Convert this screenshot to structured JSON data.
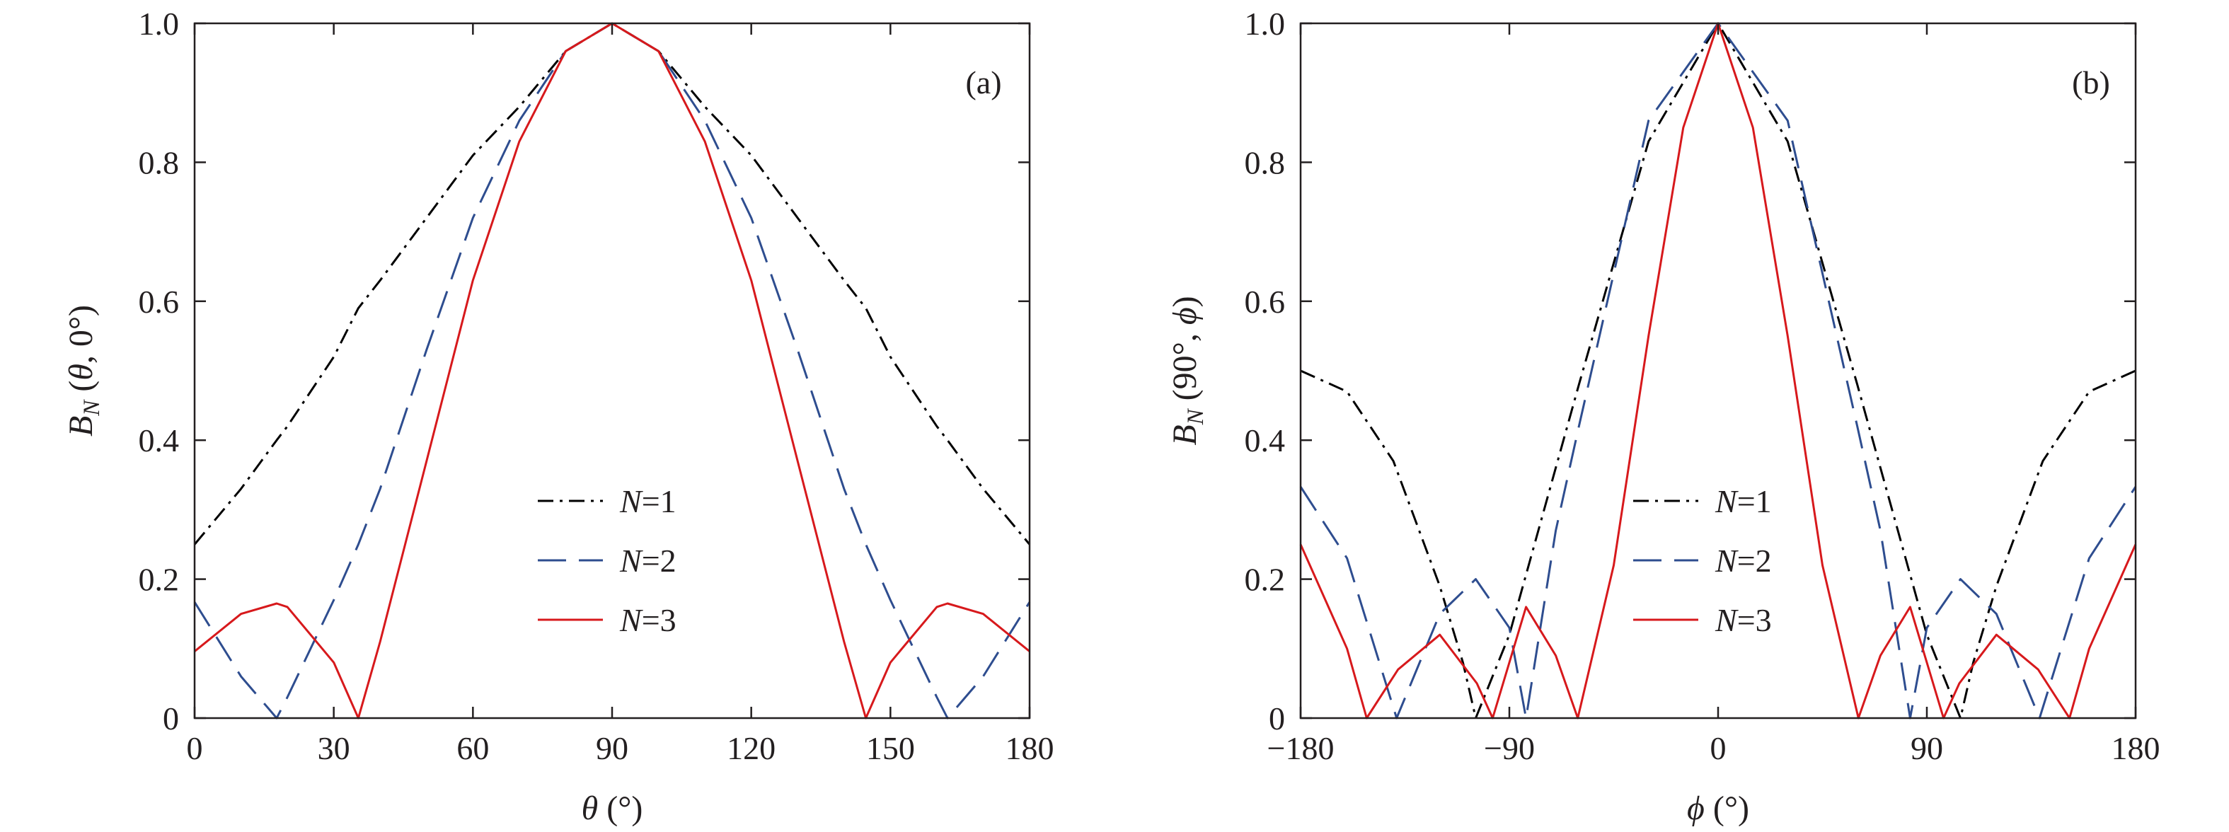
{
  "chart_data": [
    {
      "type": "line",
      "panel_label": "(a)",
      "xlabel": "θ (°)",
      "xlabel_parts": {
        "var": "θ",
        "unit": " (°)"
      },
      "ylabel": "B_N (θ, 0°)",
      "ylabel_parts": {
        "b": "B",
        "sub": "N",
        "args_pre": " (",
        "var": "θ",
        "args_post": ", 0°)"
      },
      "xlim": [
        0,
        180
      ],
      "ylim": [
        0,
        1.0
      ],
      "xticks": [
        0,
        30,
        60,
        90,
        120,
        150,
        180
      ],
      "xtick_labels": [
        "0",
        "30",
        "60",
        "90",
        "120",
        "150",
        "180"
      ],
      "yticks": [
        0,
        0.2,
        0.4,
        0.6,
        0.8,
        1.0
      ],
      "ytick_labels": [
        "0",
        "0.2",
        "0.4",
        "0.6",
        "0.8",
        "1.0"
      ],
      "grid": false,
      "legend_position": "center-right",
      "x": [
        0,
        10,
        17.7,
        20,
        30,
        35.3,
        40,
        50,
        60,
        70,
        80,
        90,
        100,
        110,
        120,
        130,
        140,
        144.7,
        150,
        160,
        162.3,
        170,
        180
      ],
      "series": [
        {
          "name": "N=1",
          "label_var": "N",
          "label_val": "=1",
          "color": "#000000",
          "style": "dashdot",
          "values": [
            0.25,
            0.33,
            0.4,
            0.42,
            0.52,
            0.59,
            0.63,
            0.72,
            0.81,
            0.88,
            0.96,
            1.0,
            0.96,
            0.88,
            0.81,
            0.72,
            0.63,
            0.59,
            0.52,
            0.42,
            0.4,
            0.33,
            0.25
          ]
        },
        {
          "name": "N=2",
          "label_var": "N",
          "label_val": "=2",
          "color": "#2e4d8f",
          "style": "dashed",
          "values": [
            0.167,
            0.06,
            0.0,
            0.03,
            0.17,
            0.25,
            0.33,
            0.53,
            0.72,
            0.86,
            0.96,
            1.0,
            0.96,
            0.86,
            0.72,
            0.53,
            0.33,
            0.25,
            0.17,
            0.03,
            0.0,
            0.06,
            0.167
          ]
        },
        {
          "name": "N=3",
          "label_var": "N",
          "label_val": "=3",
          "color": "#d7191c",
          "style": "solid",
          "values": [
            0.096,
            0.15,
            0.165,
            0.16,
            0.08,
            0.0,
            0.11,
            0.37,
            0.63,
            0.83,
            0.96,
            1.0,
            0.96,
            0.83,
            0.63,
            0.37,
            0.11,
            0.0,
            0.08,
            0.16,
            0.165,
            0.15,
            0.096
          ]
        }
      ]
    },
    {
      "type": "line",
      "panel_label": "(b)",
      "xlabel": "ϕ (°)",
      "xlabel_parts": {
        "var": "ϕ",
        "unit": " (°)"
      },
      "ylabel": "B_N (90°, ϕ)",
      "ylabel_parts": {
        "b": "B",
        "sub": "N",
        "args_pre": " (90°, ",
        "var": "ϕ",
        "args_post": ")"
      },
      "xlim": [
        -180,
        180
      ],
      "ylim": [
        0,
        1.0
      ],
      "xticks": [
        -180,
        -90,
        0,
        90,
        180
      ],
      "xtick_labels": [
        "−180",
        "−90",
        "0",
        "90",
        "180"
      ],
      "yticks": [
        0,
        0.2,
        0.4,
        0.6,
        0.8,
        1.0
      ],
      "ytick_labels": [
        "0",
        "0.2",
        "0.4",
        "0.6",
        "0.8",
        "1.0"
      ],
      "grid": false,
      "legend_position": "center-right",
      "series": [
        {
          "name": "N=1",
          "label_var": "N",
          "label_val": "=1",
          "color": "#000000",
          "style": "dashdot",
          "x": [
            -180,
            -160,
            -140,
            -120,
            -110,
            -104.5,
            -90,
            -60,
            -30,
            0,
            30,
            60,
            90,
            104.5,
            110,
            120,
            140,
            160,
            180
          ],
          "values": [
            0.5,
            0.47,
            0.37,
            0.19,
            0.08,
            0.0,
            0.12,
            0.48,
            0.83,
            1.0,
            0.83,
            0.48,
            0.12,
            0.0,
            0.08,
            0.19,
            0.37,
            0.47,
            0.5
          ]
        },
        {
          "name": "N=2",
          "label_var": "N",
          "label_val": "=2",
          "color": "#2e4d8f",
          "style": "dashed",
          "x": [
            -180,
            -160,
            -138.6,
            -120,
            -104.5,
            -90,
            -82.8,
            -70,
            -60,
            -30,
            0,
            30,
            60,
            70,
            82.8,
            90,
            104.5,
            120,
            138.6,
            160,
            180
          ],
          "values": [
            0.333,
            0.23,
            0.0,
            0.15,
            0.2,
            0.13,
            0.0,
            0.27,
            0.42,
            0.86,
            1.0,
            0.86,
            0.42,
            0.27,
            0.0,
            0.13,
            0.2,
            0.15,
            0.0,
            0.23,
            0.333
          ]
        },
        {
          "name": "N=3",
          "label_var": "N",
          "label_val": "=3",
          "color": "#d7191c",
          "style": "solid",
          "x": [
            -180,
            -160,
            -151.5,
            -138,
            -120,
            -104,
            -97.2,
            -90,
            -82.8,
            -70,
            -60.5,
            -45,
            -30,
            -15,
            0,
            15,
            30,
            45,
            60.5,
            70,
            82.8,
            90,
            97.2,
            104,
            120,
            138,
            151.5,
            160,
            180
          ],
          "values": [
            0.25,
            0.1,
            0.0,
            0.07,
            0.12,
            0.05,
            0.0,
            0.08,
            0.16,
            0.09,
            0.0,
            0.22,
            0.55,
            0.85,
            1.0,
            0.85,
            0.55,
            0.22,
            0.0,
            0.09,
            0.16,
            0.08,
            0.0,
            0.05,
            0.12,
            0.07,
            0.0,
            0.1,
            0.25
          ]
        }
      ]
    }
  ]
}
